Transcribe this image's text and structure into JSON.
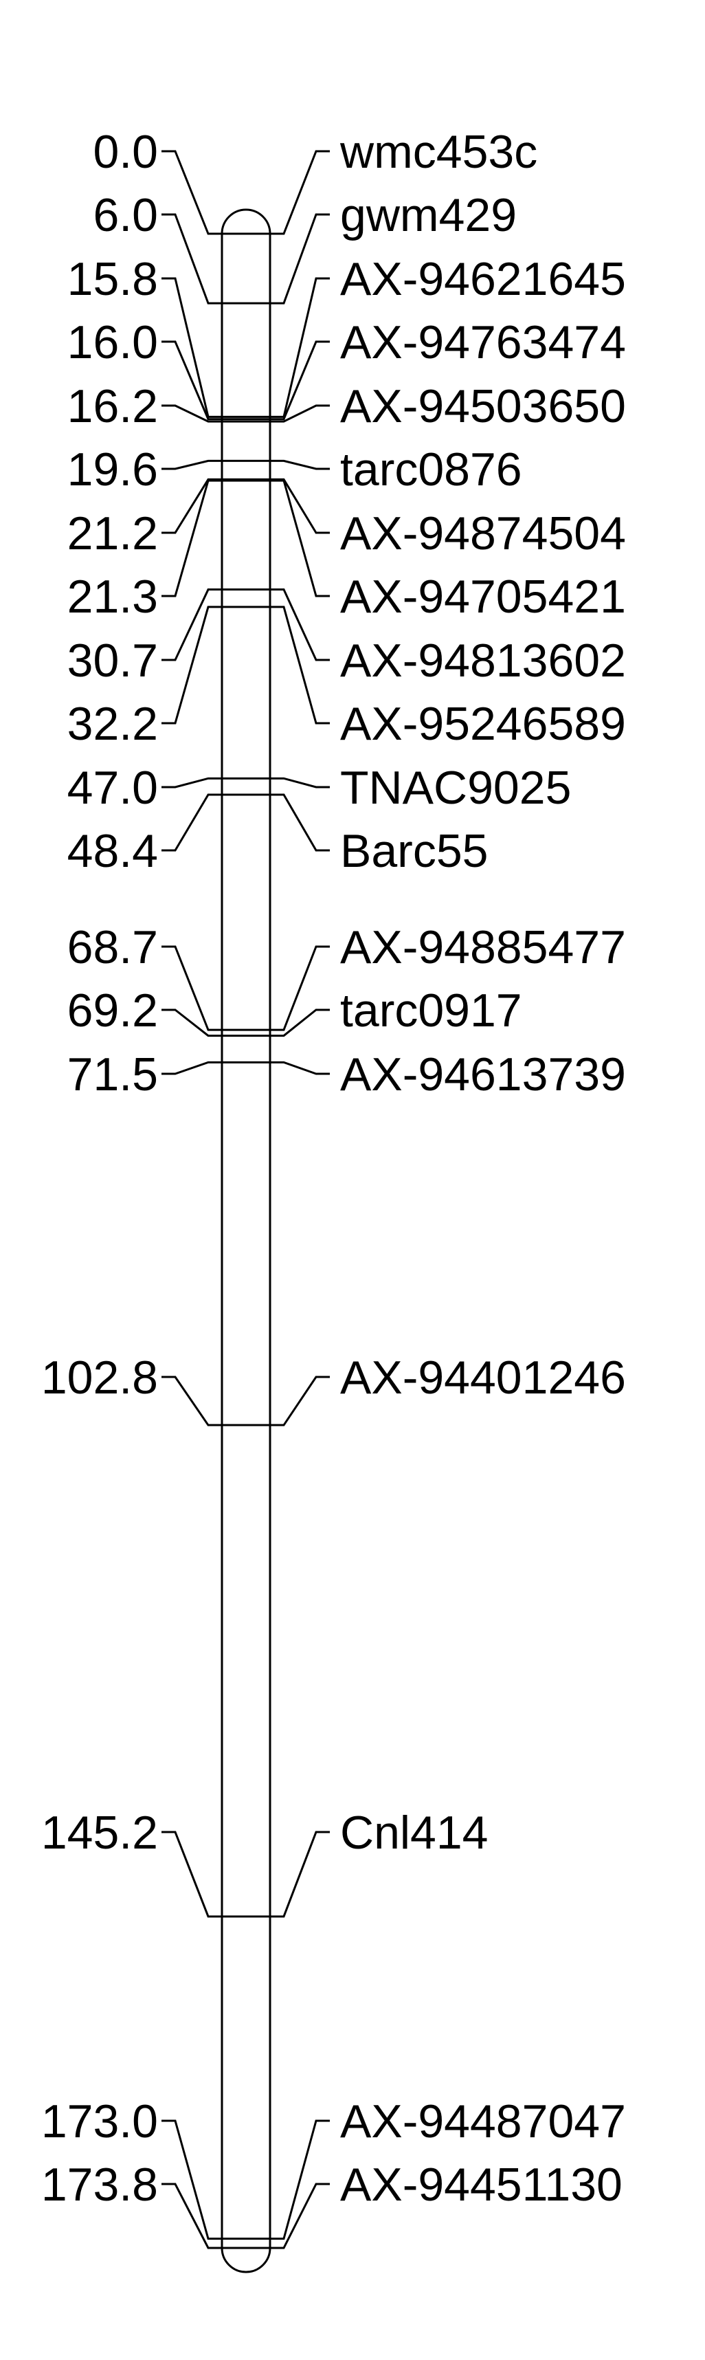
{
  "linkage_map": {
    "markers": [
      {
        "position": "0.0",
        "cm": 0.0,
        "name": "wmc453c"
      },
      {
        "position": "6.0",
        "cm": 6.0,
        "name": "gwm429"
      },
      {
        "position": "15.8",
        "cm": 15.8,
        "name": "AX-94621645"
      },
      {
        "position": "16.0",
        "cm": 16.0,
        "name": "AX-94763474"
      },
      {
        "position": "16.2",
        "cm": 16.2,
        "name": "AX-94503650"
      },
      {
        "position": "19.6",
        "cm": 19.6,
        "name": "tarc0876"
      },
      {
        "position": "21.2",
        "cm": 21.2,
        "name": "AX-94874504"
      },
      {
        "position": "21.3",
        "cm": 21.3,
        "name": "AX-94705421"
      },
      {
        "position": "30.7",
        "cm": 30.7,
        "name": "AX-94813602"
      },
      {
        "position": "32.2",
        "cm": 32.2,
        "name": "AX-95246589"
      },
      {
        "position": "47.0",
        "cm": 47.0,
        "name": "TNAC9025"
      },
      {
        "position": "48.4",
        "cm": 48.4,
        "name": "Barc55"
      },
      {
        "position": "68.7",
        "cm": 68.7,
        "name": "AX-94885477"
      },
      {
        "position": "69.2",
        "cm": 69.2,
        "name": "tarc0917"
      },
      {
        "position": "71.5",
        "cm": 71.5,
        "name": "AX-94613739"
      },
      {
        "position": "102.8",
        "cm": 102.8,
        "name": "AX-94401246"
      },
      {
        "position": "145.2",
        "cm": 145.2,
        "name": "Cnl414"
      },
      {
        "position": "173.0",
        "cm": 173.0,
        "name": "AX-94487047"
      },
      {
        "position": "173.8",
        "cm": 173.8,
        "name": "AX-94451130"
      }
    ]
  }
}
